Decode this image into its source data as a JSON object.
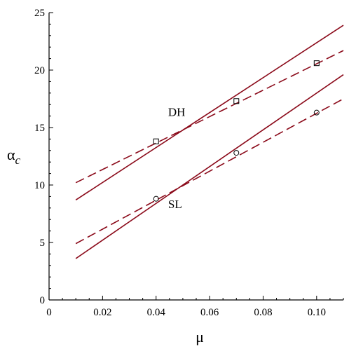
{
  "chart_data": {
    "type": "line",
    "xlabel": "μ",
    "ylabel": "α",
    "ylabel_sub": "c",
    "xlim": [
      0,
      0.11
    ],
    "ylim": [
      0,
      25
    ],
    "grid": false,
    "xticks": [
      0,
      0.02,
      0.04,
      0.06,
      0.08,
      0.1
    ],
    "xtick_labels": [
      "0",
      "0.02",
      "0.04",
      "0.06",
      "0.08",
      "0.10"
    ],
    "yticks": [
      0,
      5,
      10,
      15,
      20,
      25
    ],
    "ytick_labels": [
      "0",
      "5",
      "10",
      "15",
      "20",
      "25"
    ],
    "series": [
      {
        "style": "solid",
        "x": [
          0.01,
          0.11
        ],
        "y": [
          8.7,
          23.9
        ]
      },
      {
        "style": "dashed",
        "x": [
          0.01,
          0.11
        ],
        "y": [
          10.2,
          21.7
        ]
      },
      {
        "style": "solid",
        "x": [
          0.01,
          0.11
        ],
        "y": [
          3.6,
          19.6
        ]
      },
      {
        "style": "dashed",
        "x": [
          0.01,
          0.11
        ],
        "y": [
          4.9,
          17.5
        ]
      },
      {
        "style": "markers",
        "marker": "square",
        "x": [
          0.04,
          0.07,
          0.1
        ],
        "y": [
          13.8,
          17.3,
          20.6
        ]
      },
      {
        "style": "markers",
        "marker": "circle",
        "x": [
          0.04,
          0.07,
          0.1
        ],
        "y": [
          8.8,
          12.8,
          16.3
        ]
      }
    ],
    "annotations": [
      {
        "text": "DH",
        "x": 0.0445,
        "y": 16.0
      },
      {
        "text": "SL",
        "x": 0.0445,
        "y": 8.0
      }
    ],
    "colors": {
      "curve": "#8b0a1a",
      "axis": "#000000"
    }
  }
}
